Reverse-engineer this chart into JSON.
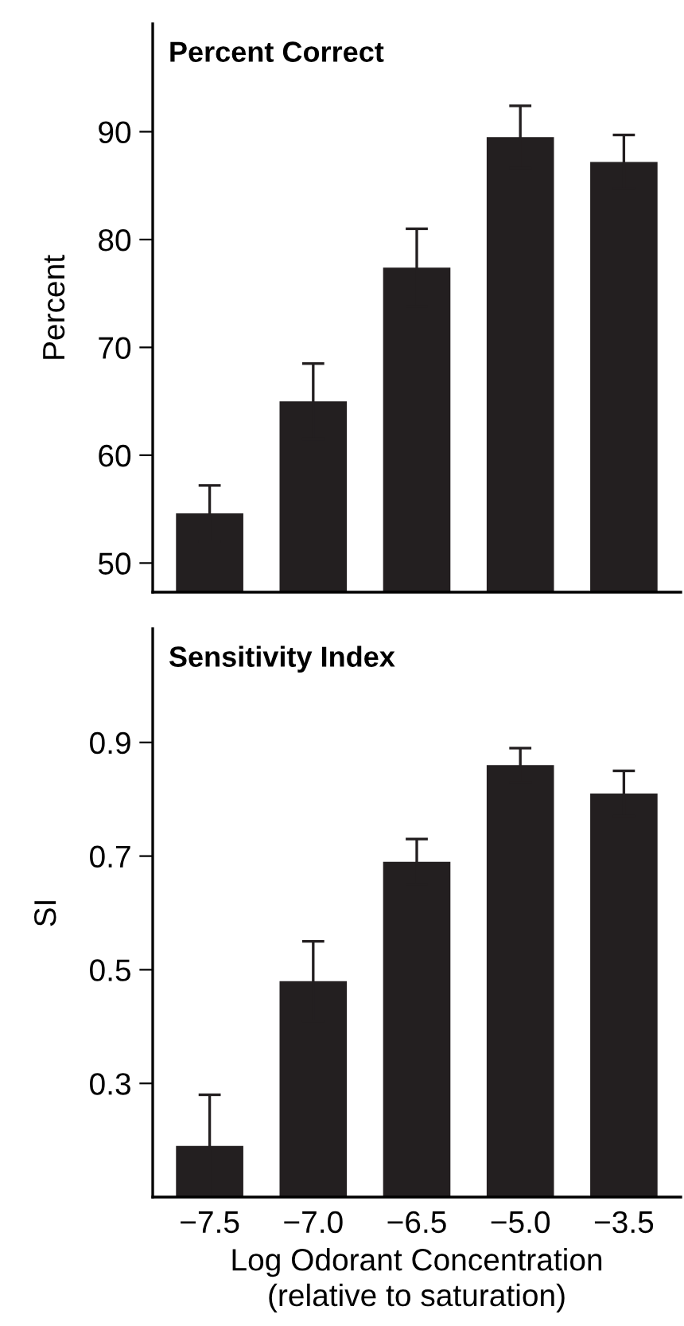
{
  "chart_data": [
    {
      "type": "bar",
      "title": "Percent Correct",
      "ylabel": "Percent",
      "categories": [
        "−7.5",
        "−7.0",
        "−6.5",
        "−5.0",
        "−3.5"
      ],
      "values": [
        54.6,
        65.0,
        77.4,
        89.5,
        87.2
      ],
      "errors": [
        2.6,
        3.5,
        3.6,
        2.9,
        2.5
      ],
      "color": "#231f20",
      "ylim": [
        47.3,
        100
      ],
      "yticks": [
        50,
        60,
        70,
        80,
        90
      ],
      "tick_labels": "y"
    },
    {
      "type": "bar",
      "title": "Sensitivity Index",
      "ylabel": "SI",
      "xlabel": "Log Odorant Concentration\n(relative to saturation)",
      "categories": [
        "−7.5",
        "−7.0",
        "−6.5",
        "−5.0",
        "−3.5"
      ],
      "values": [
        0.19,
        0.48,
        0.69,
        0.86,
        0.81
      ],
      "errors": [
        0.09,
        0.07,
        0.04,
        0.03,
        0.04
      ],
      "color": "#231f20",
      "ylim": [
        0.1,
        1.1
      ],
      "yticks": [
        0.3,
        0.5,
        0.7,
        0.9
      ]
    }
  ]
}
